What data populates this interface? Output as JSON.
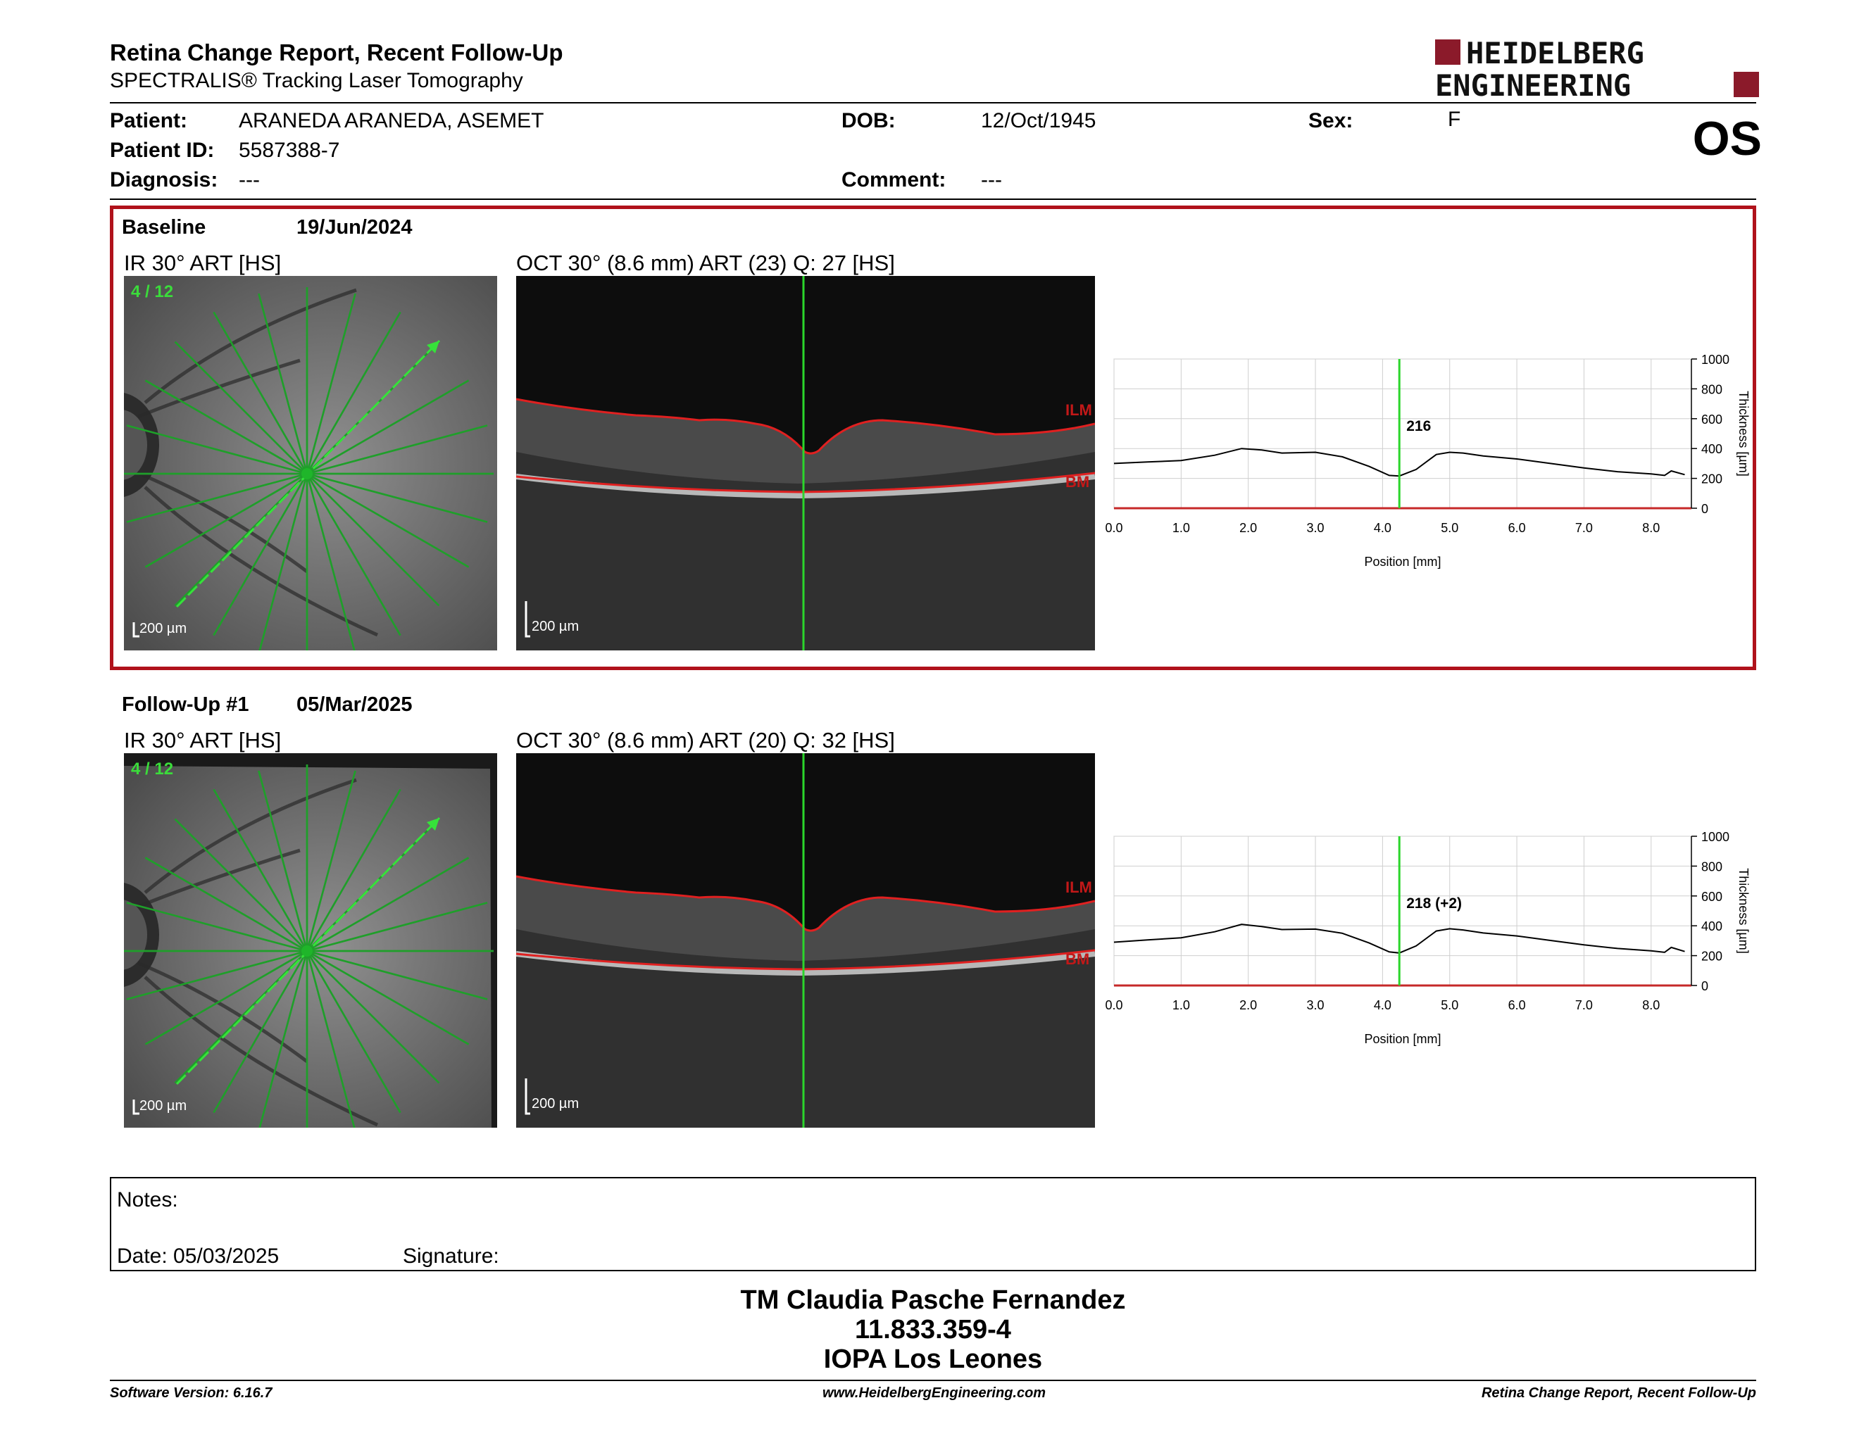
{
  "header": {
    "title": "Retina Change Report, Recent Follow-Up",
    "subtitle": "SPECTRALIS® Tracking Laser Tomography",
    "logo_line1": "HEIDELBERG",
    "logo_line2": "ENGINEERING",
    "logo_color": "#8b1a2a",
    "eye": "OS"
  },
  "patient": {
    "patient_label": "Patient:",
    "patient_value": "ARANEDA ARANEDA, ASEMET",
    "id_label": "Patient ID:",
    "id_value": "5587388-7",
    "diagnosis_label": "Diagnosis:",
    "diagnosis_value": "---",
    "dob_label": "DOB:",
    "dob_value": "12/Oct/1945",
    "comment_label": "Comment:",
    "comment_value": "---",
    "sex_label": "Sex:",
    "sex_value": "F"
  },
  "exams": [
    {
      "title": "Baseline",
      "date": "19/Jun/2024",
      "ir_label": "IR 30° ART [HS]",
      "oct_label": "OCT 30° (8.6 mm) ART (23) Q: 27 [HS]",
      "scan_counter": "4 / 12",
      "scale_ir": "200 µm",
      "scale_oct": "200 µm",
      "ilm": "ILM",
      "bm": "BM",
      "marker_label": "216"
    },
    {
      "title": "Follow-Up #1",
      "date": "05/Mar/2025",
      "ir_label": "IR 30° ART [HS]",
      "oct_label": "OCT 30° (8.6 mm) ART (20) Q: 32 [HS]",
      "scan_counter": "4 / 12",
      "scale_ir": "200 µm",
      "scale_oct": "200 µm",
      "ilm": "ILM",
      "bm": "BM",
      "marker_label": "218 (+2)"
    }
  ],
  "chart_data": [
    {
      "type": "line",
      "xlabel": "Position [mm]",
      "ylabel": "Thickness [µm]",
      "xlim": [
        0,
        8.6
      ],
      "ylim": [
        0,
        1000
      ],
      "xticks": [
        "0.0",
        "1.0",
        "2.0",
        "3.0",
        "4.0",
        "5.0",
        "6.0",
        "7.0",
        "8.0"
      ],
      "yticks": [
        "0",
        "200",
        "400",
        "600",
        "800",
        "1000"
      ],
      "grid": true,
      "marker_x": 4.25,
      "marker_value": 216,
      "series": [
        {
          "x": [
            0.0,
            0.5,
            1.0,
            1.5,
            1.9,
            2.2,
            2.5,
            3.0,
            3.4,
            3.8,
            4.1,
            4.25,
            4.5,
            4.8,
            5.0,
            5.2,
            5.5,
            6.0,
            6.5,
            7.0,
            7.5,
            8.0,
            8.2,
            8.3,
            8.5
          ],
          "y": [
            300,
            310,
            320,
            355,
            400,
            390,
            370,
            375,
            345,
            280,
            220,
            216,
            260,
            360,
            375,
            370,
            350,
            330,
            300,
            270,
            245,
            230,
            220,
            250,
            225
          ]
        }
      ]
    },
    {
      "type": "line",
      "xlabel": "Position [mm]",
      "ylabel": "Thickness [µm]",
      "xlim": [
        0,
        8.6
      ],
      "ylim": [
        0,
        1000
      ],
      "xticks": [
        "0.0",
        "1.0",
        "2.0",
        "3.0",
        "4.0",
        "5.0",
        "6.0",
        "7.0",
        "8.0"
      ],
      "yticks": [
        "0",
        "200",
        "400",
        "600",
        "800",
        "1000"
      ],
      "grid": true,
      "marker_x": 4.25,
      "marker_value": 218,
      "series": [
        {
          "x": [
            0.0,
            0.5,
            1.0,
            1.5,
            1.9,
            2.2,
            2.5,
            3.0,
            3.4,
            3.8,
            4.1,
            4.25,
            4.5,
            4.8,
            5.0,
            5.2,
            5.5,
            6.0,
            6.5,
            7.0,
            7.5,
            8.0,
            8.2,
            8.3,
            8.5
          ],
          "y": [
            290,
            305,
            320,
            360,
            410,
            395,
            375,
            378,
            350,
            285,
            225,
            218,
            265,
            365,
            380,
            372,
            352,
            332,
            302,
            272,
            248,
            232,
            222,
            255,
            228
          ]
        }
      ]
    }
  ],
  "notes": {
    "notes_label": "Notes:",
    "date_label": "Date: 05/03/2025",
    "signature_label": "Signature:"
  },
  "signature_block": {
    "name": "TM Claudia Pasche Fernandez",
    "rut": "11.833.359-4",
    "clinic": "IOPA Los Leones"
  },
  "footer": {
    "software": "Software Version: 6.16.7",
    "website": "www.HeidelbergEngineering.com",
    "report": "Retina Change Report, Recent Follow-Up"
  }
}
